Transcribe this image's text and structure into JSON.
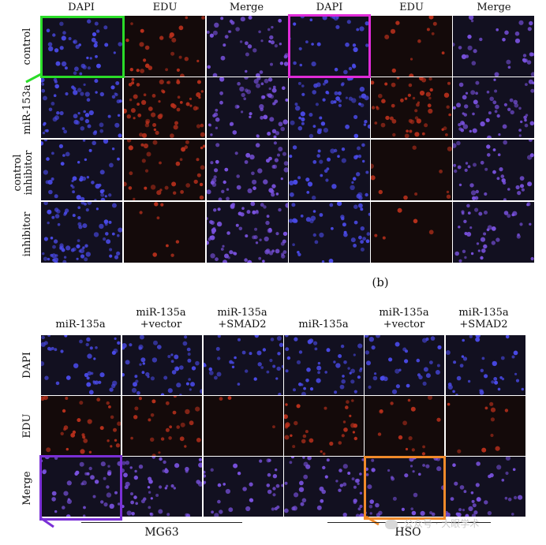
{
  "panel_a": {
    "col_headers": [
      "DAPI",
      "EDU",
      "Merge",
      "DAPI",
      "EDU",
      "Merge"
    ],
    "row_labels": [
      "control",
      "miR-153a",
      "control inhibitor",
      "inhibitor"
    ],
    "row_label_lines": [
      [
        "control"
      ],
      [
        "miR-153a"
      ],
      [
        "control",
        "inhibitor"
      ],
      [
        "inhibitor"
      ]
    ],
    "highlight_colors": [
      "#2bdc29",
      "#e02bd8"
    ]
  },
  "panel_b": {
    "tag": "(b)",
    "col_headers": [
      [
        "miR-135a"
      ],
      [
        "miR-135a",
        "+vector"
      ],
      [
        "miR-135a",
        "+SMAD2"
      ],
      [
        "miR-135a"
      ],
      [
        "miR-135a",
        "+vector"
      ],
      [
        "miR-135a",
        "+SMAD2"
      ]
    ],
    "row_labels": [
      "DAPI",
      "EDU",
      "Merge"
    ],
    "group_labels": [
      "MG63",
      "HSO"
    ],
    "highlight_colors": [
      "#7a2fd6",
      "#f08a2a"
    ]
  },
  "watermark": "公众号 · 大眼学术",
  "colors": {
    "dapi": "#4a4ae8",
    "edu": "#b8301c",
    "merge": "#7a52e0",
    "tile_bg": "#121020"
  }
}
